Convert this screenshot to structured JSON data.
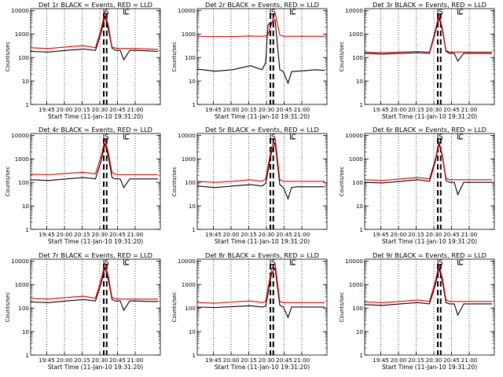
{
  "figure": {
    "xlabel": "Start Time (11-Jan-10 19:31:20)",
    "ylabel": "Counts/sec",
    "x_tick_labels": [
      "19:45",
      "20:00",
      "20:15",
      "20:30",
      "20:45",
      "21:00"
    ],
    "y_tick_labels": [
      "1",
      "10",
      "100",
      "1000",
      "10000"
    ],
    "flag_labels": [
      "S",
      "C"
    ]
  },
  "chart_data": [
    {
      "type": "line",
      "title": "Det 1r BLACK = Events, RED = LLD",
      "x_units": "minutes after 19:31:20",
      "x": [
        0,
        15,
        30,
        45,
        55,
        60,
        63,
        66,
        69,
        72,
        76,
        79,
        84,
        90,
        100,
        108
      ],
      "ylog": true,
      "ylim": [
        1,
        12000
      ],
      "series": [
        {
          "name": "Events",
          "color": "#000000",
          "values": [
            180,
            170,
            200,
            230,
            200,
            1200,
            6000,
            1500,
            250,
            200,
            200,
            80,
            200,
            200,
            190,
            180
          ]
        },
        {
          "name": "LLD",
          "color": "#e00000",
          "values": [
            260,
            240,
            280,
            320,
            260,
            1800,
            9000,
            2200,
            280,
            250,
            240,
            240,
            240,
            240,
            230,
            220
          ]
        }
      ]
    },
    {
      "type": "line",
      "title": "Det 2r BLACK = Events, RED = LLD",
      "x_units": "minutes after 19:31:20",
      "x": [
        0,
        15,
        30,
        45,
        55,
        58,
        60,
        66,
        70,
        73,
        77,
        80,
        84,
        90,
        100,
        108
      ],
      "ylog": true,
      "ylim": [
        1,
        12000
      ],
      "series": [
        {
          "name": "Events",
          "color": "#000000",
          "values": [
            32,
            26,
            30,
            45,
            30,
            60,
            2500,
            4000,
            30,
            25,
            8,
            25,
            26,
            27,
            30,
            28
          ]
        },
        {
          "name": "LLD",
          "color": "#e00000",
          "values": [
            800,
            780,
            780,
            820,
            800,
            820,
            900,
            8000,
            900,
            800,
            800,
            800,
            800,
            800,
            800,
            800
          ]
        }
      ]
    },
    {
      "type": "line",
      "title": "Det 3r BLACK = Events, RED = LLD",
      "x_units": "minutes after 19:31:20",
      "x": [
        0,
        15,
        30,
        45,
        55,
        60,
        63,
        66,
        69,
        72,
        76,
        79,
        84,
        90,
        100,
        108
      ],
      "ylog": true,
      "ylim": [
        1,
        12000
      ],
      "series": [
        {
          "name": "Events",
          "color": "#000000",
          "values": [
            150,
            140,
            150,
            160,
            150,
            1200,
            5000,
            1400,
            180,
            150,
            150,
            70,
            150,
            150,
            150,
            150
          ]
        },
        {
          "name": "LLD",
          "color": "#e00000",
          "values": [
            170,
            160,
            170,
            180,
            170,
            1500,
            7000,
            1700,
            200,
            170,
            170,
            170,
            170,
            170,
            170,
            170
          ]
        }
      ]
    },
    {
      "type": "line",
      "title": "Det 4r BLACK = Events, RED = LLD",
      "x_units": "minutes after 19:31:20",
      "x": [
        0,
        15,
        30,
        45,
        55,
        60,
        63,
        66,
        69,
        72,
        76,
        79,
        84,
        90,
        100,
        108
      ],
      "ylog": true,
      "ylim": [
        1,
        12000
      ],
      "series": [
        {
          "name": "Events",
          "color": "#000000",
          "values": [
            130,
            120,
            140,
            160,
            140,
            900,
            4500,
            1200,
            160,
            140,
            140,
            60,
            140,
            140,
            140,
            140
          ]
        },
        {
          "name": "LLD",
          "color": "#e00000",
          "values": [
            220,
            210,
            240,
            270,
            230,
            1400,
            7000,
            1800,
            260,
            220,
            210,
            210,
            210,
            210,
            210,
            210
          ]
        }
      ]
    },
    {
      "type": "line",
      "title": "Det 5r BLACK = Events, RED = LLD",
      "x_units": "minutes after 19:31:20",
      "x": [
        0,
        15,
        30,
        45,
        55,
        58,
        60,
        63,
        66,
        70,
        73,
        77,
        80,
        84,
        90,
        108
      ],
      "ylog": true,
      "ylim": [
        1,
        12000
      ],
      "series": [
        {
          "name": "Events",
          "color": "#000000",
          "values": [
            70,
            60,
            70,
            80,
            70,
            90,
            300,
            2000,
            5000,
            80,
            60,
            20,
            60,
            65,
            65,
            65
          ]
        },
        {
          "name": "LLD",
          "color": "#e00000",
          "values": [
            110,
            100,
            110,
            130,
            110,
            140,
            500,
            3000,
            8000,
            130,
            110,
            110,
            110,
            110,
            110,
            110
          ]
        }
      ]
    },
    {
      "type": "line",
      "title": "Det 6r BLACK = Events, RED = LLD",
      "x_units": "minutes after 19:31:20",
      "x": [
        0,
        15,
        30,
        45,
        55,
        60,
        63,
        66,
        69,
        72,
        76,
        79,
        84,
        90,
        100,
        108
      ],
      "ylog": true,
      "ylim": [
        1,
        12000
      ],
      "series": [
        {
          "name": "Events",
          "color": "#000000",
          "values": [
            100,
            95,
            110,
            130,
            110,
            800,
            4500,
            1200,
            120,
            100,
            100,
            30,
            100,
            100,
            100,
            100
          ]
        },
        {
          "name": "LLD",
          "color": "#e00000",
          "values": [
            130,
            120,
            140,
            160,
            140,
            1000,
            5500,
            1400,
            150,
            130,
            130,
            130,
            130,
            130,
            130,
            130
          ]
        }
      ]
    },
    {
      "type": "line",
      "title": "Det 7r BLACK = Events, RED = LLD",
      "x_units": "minutes after 19:31:20",
      "x": [
        0,
        15,
        30,
        45,
        55,
        60,
        63,
        66,
        69,
        72,
        76,
        79,
        84,
        90,
        100,
        108
      ],
      "ylog": true,
      "ylim": [
        1,
        12000
      ],
      "series": [
        {
          "name": "Events",
          "color": "#000000",
          "values": [
            180,
            170,
            200,
            230,
            200,
            1200,
            5500,
            1500,
            230,
            200,
            200,
            80,
            200,
            200,
            190,
            190
          ]
        },
        {
          "name": "LLD",
          "color": "#e00000",
          "values": [
            260,
            240,
            280,
            320,
            260,
            1800,
            8500,
            2200,
            280,
            250,
            240,
            240,
            240,
            240,
            240,
            240
          ]
        }
      ]
    },
    {
      "type": "line",
      "title": "Det 8r BLACK = Events, RED = LLD",
      "x_units": "minutes after 19:31:20",
      "x": [
        0,
        15,
        30,
        45,
        55,
        58,
        60,
        63,
        66,
        70,
        73,
        77,
        80,
        84,
        90,
        108
      ],
      "ylog": true,
      "ylim": [
        1,
        12000
      ],
      "series": [
        {
          "name": "Events",
          "color": "#000000",
          "values": [
            110,
            105,
            115,
            125,
            110,
            120,
            400,
            3000,
            5000,
            130,
            110,
            40,
            110,
            110,
            110,
            110
          ]
        },
        {
          "name": "LLD",
          "color": "#e00000",
          "values": [
            170,
            160,
            180,
            200,
            170,
            190,
            700,
            4500,
            8000,
            190,
            170,
            170,
            170,
            170,
            170,
            170
          ]
        }
      ]
    },
    {
      "type": "line",
      "title": "Det 9r BLACK = Events, RED = LLD",
      "x_units": "minutes after 19:31:20",
      "x": [
        0,
        15,
        30,
        45,
        55,
        60,
        63,
        66,
        69,
        72,
        76,
        79,
        84,
        90,
        100,
        108
      ],
      "ylog": true,
      "ylim": [
        1,
        12000
      ],
      "series": [
        {
          "name": "Events",
          "color": "#000000",
          "values": [
            140,
            130,
            150,
            170,
            150,
            1000,
            5000,
            1300,
            170,
            150,
            150,
            50,
            150,
            150,
            150,
            150
          ]
        },
        {
          "name": "LLD",
          "color": "#e00000",
          "values": [
            180,
            170,
            190,
            220,
            190,
            1400,
            7000,
            1800,
            220,
            190,
            190,
            190,
            190,
            190,
            190,
            190
          ]
        }
      ]
    }
  ]
}
